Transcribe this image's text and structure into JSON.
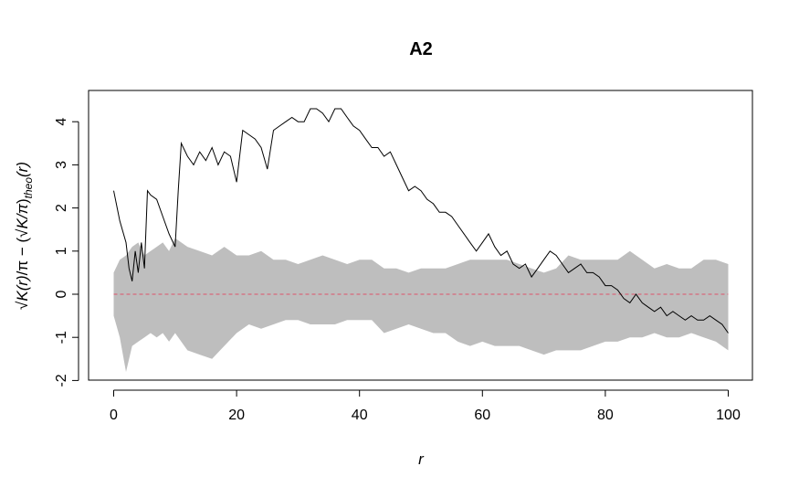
{
  "chart_data": {
    "type": "line",
    "title": "A2",
    "xlabel": "r",
    "ylabel_parts": {
      "sqrt1": "√",
      "k1": "K(r)",
      "div1": "/π",
      "minus": " − (",
      "sqrt2": "√",
      "k2": "K/π",
      "close": ")",
      "sub": "theo",
      "tail": "(r)"
    },
    "xlim": [
      0,
      100
    ],
    "ylim": [
      -2,
      4.5
    ],
    "xticks": [
      0,
      20,
      40,
      60,
      80,
      100
    ],
    "yticks": [
      -2,
      -1,
      0,
      1,
      2,
      3,
      4
    ],
    "x_tick_labels": [
      "0",
      "20",
      "40",
      "60",
      "80",
      "100"
    ],
    "y_tick_labels": [
      "-2",
      "-1",
      "0",
      "1",
      "2",
      "3",
      "4"
    ],
    "grid": false,
    "legend": false,
    "colors": {
      "observed": "#000000",
      "envelope": "#bebebe",
      "theoretical": "#df536b"
    },
    "series": [
      {
        "role": "observed",
        "x": [
          0,
          1,
          2,
          2.5,
          3,
          3.5,
          4,
          4.5,
          5,
          5.5,
          6,
          7,
          8,
          9,
          10,
          10.5,
          11,
          12,
          13,
          14,
          15,
          16,
          17,
          18,
          19,
          20,
          21,
          22,
          23,
          24,
          25,
          26,
          27,
          28,
          29,
          30,
          31,
          32,
          33,
          34,
          35,
          36,
          37,
          38,
          39,
          40,
          41,
          42,
          43,
          44,
          45,
          46,
          47,
          48,
          49,
          50,
          51,
          52,
          53,
          54,
          55,
          56,
          57,
          58,
          59,
          60,
          61,
          62,
          63,
          64,
          65,
          66,
          67,
          68,
          69,
          70,
          71,
          72,
          73,
          74,
          75,
          76,
          77,
          78,
          79,
          80,
          81,
          82,
          83,
          84,
          85,
          86,
          87,
          88,
          89,
          90,
          91,
          92,
          93,
          94,
          95,
          96,
          97,
          98,
          99,
          100
        ],
        "y": [
          2.4,
          1.7,
          1.2,
          0.6,
          0.3,
          1.0,
          0.5,
          1.2,
          0.6,
          2.4,
          2.3,
          2.2,
          1.8,
          1.4,
          1.1,
          2.4,
          3.5,
          3.2,
          3.0,
          3.3,
          3.1,
          3.4,
          3.0,
          3.3,
          3.2,
          2.6,
          3.8,
          3.7,
          3.6,
          3.4,
          2.9,
          3.8,
          3.9,
          4.0,
          4.1,
          4.0,
          4.0,
          4.3,
          4.3,
          4.2,
          4.0,
          4.3,
          4.3,
          4.1,
          3.9,
          3.8,
          3.6,
          3.4,
          3.4,
          3.2,
          3.3,
          3.0,
          2.7,
          2.4,
          2.5,
          2.4,
          2.2,
          2.1,
          1.9,
          1.9,
          1.8,
          1.6,
          1.4,
          1.2,
          1.0,
          1.2,
          1.4,
          1.1,
          0.9,
          1.0,
          0.7,
          0.6,
          0.7,
          0.4,
          0.6,
          0.8,
          1.0,
          0.9,
          0.7,
          0.5,
          0.6,
          0.7,
          0.5,
          0.5,
          0.4,
          0.2,
          0.2,
          0.1,
          -0.1,
          -0.2,
          0.0,
          -0.2,
          -0.3,
          -0.4,
          -0.3,
          -0.5,
          -0.4,
          -0.5,
          -0.6,
          -0.5,
          -0.6,
          -0.6,
          -0.5,
          -0.6,
          -0.7,
          -0.9
        ]
      },
      {
        "role": "envelope",
        "x": [
          0,
          1,
          2,
          3,
          4,
          5,
          6,
          7,
          8,
          9,
          10,
          12,
          14,
          16,
          18,
          20,
          22,
          24,
          26,
          28,
          30,
          32,
          34,
          36,
          38,
          40,
          42,
          44,
          46,
          48,
          50,
          52,
          54,
          56,
          58,
          60,
          62,
          64,
          66,
          68,
          70,
          72,
          74,
          76,
          78,
          80,
          82,
          84,
          86,
          88,
          90,
          92,
          94,
          96,
          98,
          100
        ],
        "upper": [
          0.5,
          0.8,
          0.9,
          1.1,
          1.2,
          0.9,
          1.0,
          1.1,
          1.2,
          1.0,
          1.3,
          1.1,
          1.0,
          0.9,
          1.1,
          0.9,
          0.9,
          1.0,
          0.8,
          0.8,
          0.7,
          0.8,
          0.9,
          0.8,
          0.7,
          0.8,
          0.8,
          0.6,
          0.6,
          0.5,
          0.6,
          0.6,
          0.6,
          0.7,
          0.8,
          0.8,
          0.8,
          0.8,
          0.7,
          0.6,
          0.5,
          0.6,
          0.9,
          0.8,
          0.8,
          0.8,
          0.8,
          1.0,
          0.8,
          0.6,
          0.7,
          0.6,
          0.6,
          0.8,
          0.8,
          0.7
        ],
        "lower": [
          -0.5,
          -1.0,
          -1.8,
          -1.2,
          -1.1,
          -1.0,
          -0.9,
          -1.0,
          -0.9,
          -1.1,
          -0.9,
          -1.3,
          -1.4,
          -1.5,
          -1.2,
          -0.9,
          -0.7,
          -0.8,
          -0.7,
          -0.6,
          -0.6,
          -0.7,
          -0.7,
          -0.7,
          -0.6,
          -0.6,
          -0.6,
          -0.9,
          -0.8,
          -0.7,
          -0.8,
          -0.9,
          -0.9,
          -1.1,
          -1.2,
          -1.1,
          -1.2,
          -1.2,
          -1.2,
          -1.3,
          -1.4,
          -1.3,
          -1.3,
          -1.3,
          -1.2,
          -1.1,
          -1.1,
          -1.0,
          -1.0,
          -0.9,
          -1.0,
          -1.0,
          -0.9,
          -1.0,
          -1.1,
          -1.3
        ]
      },
      {
        "role": "theoretical",
        "x": [
          0,
          100
        ],
        "y": [
          0,
          0
        ]
      }
    ]
  }
}
